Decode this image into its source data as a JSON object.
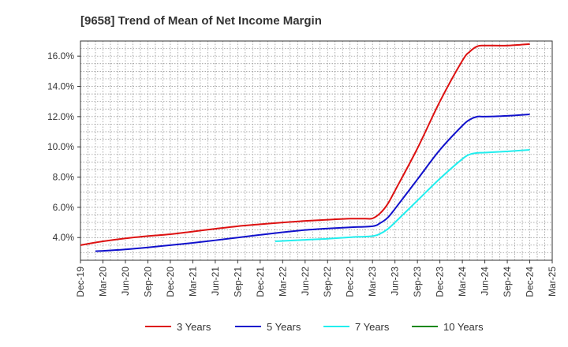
{
  "chart_data": {
    "type": "line",
    "title": "[9658]  Trend of Mean of Net Income Margin",
    "xlabel": "",
    "ylabel": "",
    "x_ticks": [
      "Dec-19",
      "Mar-20",
      "Jun-20",
      "Sep-20",
      "Dec-20",
      "Mar-21",
      "Jun-21",
      "Sep-21",
      "Dec-21",
      "Mar-22",
      "Jun-22",
      "Sep-22",
      "Dec-22",
      "Mar-23",
      "Jun-23",
      "Sep-23",
      "Dec-23",
      "Mar-24",
      "Jun-24",
      "Sep-24",
      "Dec-24",
      "Mar-25"
    ],
    "y_ticks": [
      "4.0%",
      "6.0%",
      "8.0%",
      "10.0%",
      "12.0%",
      "14.0%",
      "16.0%"
    ],
    "y_tick_values": [
      4,
      6,
      8,
      10,
      12,
      14,
      16
    ],
    "ylim": [
      2.5,
      17.0
    ],
    "grid": true,
    "legend_position": "bottom",
    "series": [
      {
        "name": "3 Years",
        "color": "#dd1111",
        "points": [
          [
            "Dec-19",
            3.5
          ],
          [
            "Mar-20",
            3.75
          ],
          [
            "Jun-20",
            3.95
          ],
          [
            "Sep-20",
            4.1
          ],
          [
            "Dec-20",
            4.22
          ],
          [
            "Mar-21",
            4.4
          ],
          [
            "Jun-21",
            4.58
          ],
          [
            "Sep-21",
            4.75
          ],
          [
            "Dec-21",
            4.88
          ],
          [
            "Mar-22",
            5.0
          ],
          [
            "Jun-22",
            5.1
          ],
          [
            "Sep-22",
            5.18
          ],
          [
            "Dec-22",
            5.25
          ],
          [
            "Feb-23",
            5.25
          ],
          [
            "Mar-23",
            5.27
          ],
          [
            "Apr-23",
            5.6
          ],
          [
            "May-23",
            6.2
          ],
          [
            "Jun-23",
            7.1
          ],
          [
            "Sep-23",
            9.9
          ],
          [
            "Dec-23",
            13.0
          ],
          [
            "Mar-24",
            15.7
          ],
          [
            "Apr-24",
            16.3
          ],
          [
            "May-24",
            16.65
          ],
          [
            "Jun-24",
            16.7
          ],
          [
            "Sep-24",
            16.7
          ],
          [
            "Dec-24",
            16.8
          ]
        ]
      },
      {
        "name": "5 Years",
        "color": "#1111cc",
        "points": [
          [
            "Feb-20",
            3.1
          ],
          [
            "Mar-20",
            3.12
          ],
          [
            "Jun-20",
            3.22
          ],
          [
            "Sep-20",
            3.35
          ],
          [
            "Dec-20",
            3.5
          ],
          [
            "Mar-21",
            3.65
          ],
          [
            "Jun-21",
            3.82
          ],
          [
            "Sep-21",
            4.0
          ],
          [
            "Dec-21",
            4.18
          ],
          [
            "Mar-22",
            4.35
          ],
          [
            "Jun-22",
            4.5
          ],
          [
            "Sep-22",
            4.6
          ],
          [
            "Dec-22",
            4.68
          ],
          [
            "Mar-23",
            4.75
          ],
          [
            "Apr-23",
            4.95
          ],
          [
            "May-23",
            5.3
          ],
          [
            "Jun-23",
            5.9
          ],
          [
            "Sep-23",
            7.85
          ],
          [
            "Dec-23",
            9.8
          ],
          [
            "Mar-24",
            11.4
          ],
          [
            "Apr-24",
            11.8
          ],
          [
            "May-24",
            12.0
          ],
          [
            "Jun-24",
            12.0
          ],
          [
            "Sep-24",
            12.05
          ],
          [
            "Dec-24",
            12.15
          ]
        ]
      },
      {
        "name": "7 Years",
        "color": "#22eeee",
        "points": [
          [
            "Feb-22",
            3.75
          ],
          [
            "Mar-22",
            3.78
          ],
          [
            "Jun-22",
            3.85
          ],
          [
            "Sep-22",
            3.92
          ],
          [
            "Dec-22",
            4.02
          ],
          [
            "Mar-23",
            4.1
          ],
          [
            "Apr-23",
            4.25
          ],
          [
            "May-23",
            4.55
          ],
          [
            "Jun-23",
            5.0
          ],
          [
            "Sep-23",
            6.45
          ],
          [
            "Dec-23",
            7.9
          ],
          [
            "Mar-24",
            9.2
          ],
          [
            "Apr-24",
            9.5
          ],
          [
            "May-24",
            9.6
          ],
          [
            "Jun-24",
            9.62
          ],
          [
            "Sep-24",
            9.7
          ],
          [
            "Dec-24",
            9.8
          ]
        ]
      },
      {
        "name": "10 Years",
        "color": "#118811",
        "points": []
      }
    ]
  }
}
